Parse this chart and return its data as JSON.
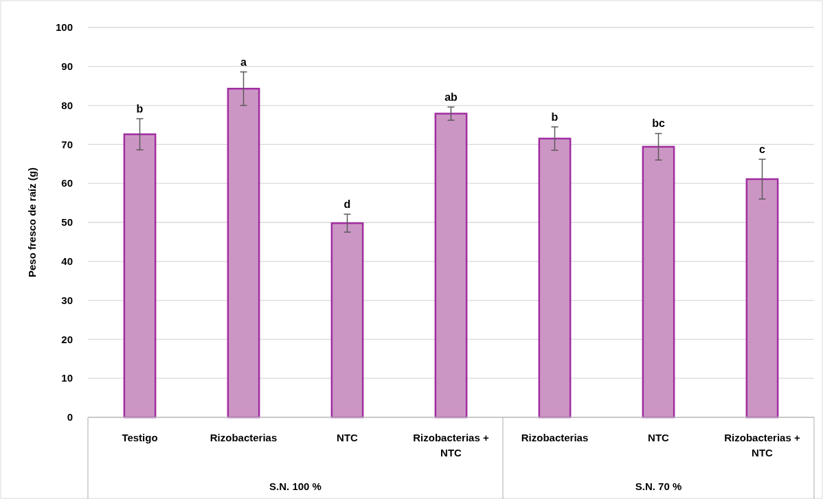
{
  "chart_data": {
    "type": "bar",
    "ylabel": "Peso fresco de raíz (g)",
    "categories": [
      "Testigo",
      "Rizobacterias",
      "NTC",
      "Rizobacterias + NTC",
      "Rizobacterias",
      "NTC",
      "Rizobacterias + NTC"
    ],
    "values": [
      72.6,
      84.3,
      49.8,
      77.9,
      71.5,
      69.4,
      61.1
    ],
    "errors": [
      4,
      4.3,
      2.3,
      1.7,
      3,
      3.4,
      5.1
    ],
    "color": "#cc96c4",
    "ylim": [
      0,
      100
    ],
    "yticks": [
      0,
      10,
      20,
      30,
      40,
      50,
      60,
      70,
      80,
      90,
      100
    ],
    "grid": "y",
    "annotations": [
      "b",
      "a",
      "d",
      "ab",
      "b",
      "bc",
      "c",
      "S.N. 100 %",
      "S.N. 70 %"
    ]
  }
}
